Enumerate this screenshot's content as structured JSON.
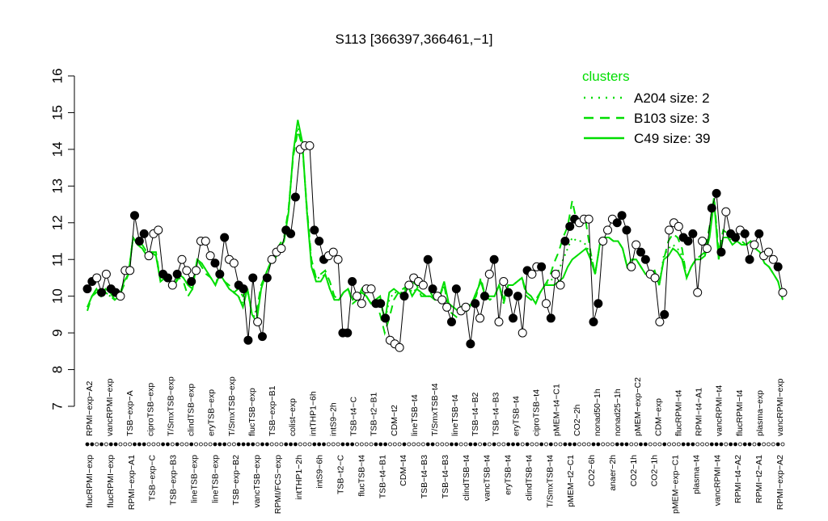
{
  "chart_data": {
    "type": "line",
    "title": "S113 [366397,366461,−1]",
    "xlabel": "",
    "ylabel": "",
    "ylim": [
      7,
      16
    ],
    "y_ticks": [
      7,
      8,
      9,
      10,
      11,
      12,
      13,
      14,
      15,
      16
    ],
    "grid": false,
    "legend": {
      "title": "clusters",
      "placement": "top-right",
      "entries": [
        {
          "label": "A204 size: 2",
          "style": "dotted"
        },
        {
          "label": "B103 size: 3",
          "style": "dashed"
        },
        {
          "label": "C49 size: 39",
          "style": "solid"
        }
      ]
    },
    "colors": {
      "cluster_lines": "#00dd00",
      "points_fill_dark": "#000000",
      "points_fill_light": "#ffffff",
      "axis": "#000000"
    },
    "top_labels": [
      "RPMI−exp−A2",
      "vancRPMI−exp",
      "TSB−exp−A",
      "ciproTSB−exp",
      "T/SmxTSB−exp",
      "clindTSB−exp",
      "eryTSB−exp",
      "T/SmxTSB−exp",
      "flucTSB−exp",
      "TSB−exp−B1",
      "colist−exp",
      "intTHP1−6h",
      "intS9−2h",
      "TSB−t4−C",
      "TSB−t2−B1",
      "CDM−t2",
      "lineTSB−t4",
      "T/SmxTSB−t4",
      "lineTSB−t4",
      "TSB−t4−B2",
      "TSB−t4−B3",
      "eryTSB−t4",
      "ciproTSB−t4",
      "pMEM−t4−C1",
      "CO2−2h",
      "nonad50−1h",
      "nonad25−1h",
      "pMEM−exp−C2",
      "CDM−exp",
      "flucRPMI−t4",
      "RPMI−t4−A1",
      "vancRPMI−t4",
      "flucRPMI−t4",
      "plasma−exp",
      "vancRPMI−exp"
    ],
    "bottom_labels": [
      "flucRPMI−exp",
      "flucRPMI−exp",
      "RPMI−exp−A1",
      "TSB−exp−C",
      "TSB−exp−B3",
      "lineTSB−exp",
      "lineTSB−exp",
      "TSB−exp−B2",
      "vancTSB−exp",
      "RPMI/FCS−exp",
      "intTHP1−2h",
      "intS9−6h",
      "TSB−t2−C",
      "flucTSB−t4",
      "TSB−t4−B1",
      "CDM−t4",
      "TSB−t4−B3",
      "TSB−t4−B3",
      "clindTSB−t4",
      "vancTSB−t4",
      "eryTSB−t4",
      "clindTSB−t4",
      "T/SmxTSB−t4",
      "pMEM−t2−C1",
      "CO2−6h",
      "anaer−2h",
      "CO2−1h",
      "CO2−1h",
      "pMEM−exp−C1",
      "plasma−t4",
      "vancRPMI−t4",
      "RPMI−t4−A2",
      "RPMI−t2−A1",
      "RPMI−exp−A2"
    ],
    "samples": [
      {
        "y": 10.2,
        "filled": true
      },
      {
        "y": 10.4,
        "filled": true
      },
      {
        "y": 10.5,
        "filled": false
      },
      {
        "y": 10.1,
        "filled": true
      },
      {
        "y": 10.6,
        "filled": false
      },
      {
        "y": 10.2,
        "filled": true
      },
      {
        "y": 10.1,
        "filled": true
      },
      {
        "y": 10.0,
        "filled": false
      },
      {
        "y": 10.7,
        "filled": false
      },
      {
        "y": 10.7,
        "filled": false
      },
      {
        "y": 12.2,
        "filled": true
      },
      {
        "y": 11.5,
        "filled": true
      },
      {
        "y": 11.7,
        "filled": true
      },
      {
        "y": 11.1,
        "filled": false
      },
      {
        "y": 11.7,
        "filled": false
      },
      {
        "y": 11.8,
        "filled": false
      },
      {
        "y": 10.6,
        "filled": true
      },
      {
        "y": 10.5,
        "filled": true
      },
      {
        "y": 10.3,
        "filled": false
      },
      {
        "y": 10.6,
        "filled": true
      },
      {
        "y": 11.0,
        "filled": false
      },
      {
        "y": 10.7,
        "filled": false
      },
      {
        "y": 10.4,
        "filled": true
      },
      {
        "y": 10.7,
        "filled": false
      },
      {
        "y": 11.5,
        "filled": false
      },
      {
        "y": 11.5,
        "filled": false
      },
      {
        "y": 11.1,
        "filled": false
      },
      {
        "y": 10.9,
        "filled": true
      },
      {
        "y": 10.6,
        "filled": true
      },
      {
        "y": 11.6,
        "filled": true
      },
      {
        "y": 11.0,
        "filled": false
      },
      {
        "y": 10.9,
        "filled": false
      },
      {
        "y": 10.3,
        "filled": true
      },
      {
        "y": 10.2,
        "filled": true
      },
      {
        "y": 8.8,
        "filled": true
      },
      {
        "y": 10.5,
        "filled": true
      },
      {
        "y": 9.3,
        "filled": false
      },
      {
        "y": 8.9,
        "filled": true
      },
      {
        "y": 10.5,
        "filled": true
      },
      {
        "y": 11.0,
        "filled": false
      },
      {
        "y": 11.2,
        "filled": false
      },
      {
        "y": 11.3,
        "filled": false
      },
      {
        "y": 11.8,
        "filled": true
      },
      {
        "y": 11.7,
        "filled": true
      },
      {
        "y": 12.7,
        "filled": true
      },
      {
        "y": 14.0,
        "filled": false
      },
      {
        "y": 14.1,
        "filled": false
      },
      {
        "y": 14.1,
        "filled": false
      },
      {
        "y": 11.8,
        "filled": true
      },
      {
        "y": 11.5,
        "filled": true
      },
      {
        "y": 11.0,
        "filled": true
      },
      {
        "y": 11.1,
        "filled": false
      },
      {
        "y": 11.2,
        "filled": false
      },
      {
        "y": 11.0,
        "filled": false
      },
      {
        "y": 9.0,
        "filled": true
      },
      {
        "y": 9.0,
        "filled": true
      },
      {
        "y": 10.4,
        "filled": true
      },
      {
        "y": 10.0,
        "filled": false
      },
      {
        "y": 9.8,
        "filled": false
      },
      {
        "y": 10.2,
        "filled": false
      },
      {
        "y": 10.2,
        "filled": false
      },
      {
        "y": 9.8,
        "filled": true
      },
      {
        "y": 9.8,
        "filled": true
      },
      {
        "y": 9.4,
        "filled": true
      },
      {
        "y": 8.8,
        "filled": false
      },
      {
        "y": 8.7,
        "filled": false
      },
      {
        "y": 8.6,
        "filled": false
      },
      {
        "y": 10.0,
        "filled": true
      },
      {
        "y": 10.3,
        "filled": false
      },
      {
        "y": 10.5,
        "filled": false
      },
      {
        "y": 10.4,
        "filled": false
      },
      {
        "y": 10.3,
        "filled": false
      },
      {
        "y": 11.0,
        "filled": true
      },
      {
        "y": 10.2,
        "filled": true
      },
      {
        "y": 10.0,
        "filled": false
      },
      {
        "y": 9.9,
        "filled": false
      },
      {
        "y": 9.7,
        "filled": false
      },
      {
        "y": 9.3,
        "filled": true
      },
      {
        "y": 10.2,
        "filled": true
      },
      {
        "y": 9.6,
        "filled": false
      },
      {
        "y": 9.7,
        "filled": false
      },
      {
        "y": 8.7,
        "filled": true
      },
      {
        "y": 9.8,
        "filled": true
      },
      {
        "y": 9.4,
        "filled": false
      },
      {
        "y": 10.0,
        "filled": true
      },
      {
        "y": 10.6,
        "filled": false
      },
      {
        "y": 11.0,
        "filled": true
      },
      {
        "y": 9.3,
        "filled": false
      },
      {
        "y": 10.4,
        "filled": false
      },
      {
        "y": 10.1,
        "filled": true
      },
      {
        "y": 9.4,
        "filled": true
      },
      {
        "y": 10.0,
        "filled": true
      },
      {
        "y": 9.0,
        "filled": false
      },
      {
        "y": 10.7,
        "filled": true
      },
      {
        "y": 10.6,
        "filled": false
      },
      {
        "y": 10.8,
        "filled": false
      },
      {
        "y": 10.8,
        "filled": true
      },
      {
        "y": 9.8,
        "filled": false
      },
      {
        "y": 9.4,
        "filled": true
      },
      {
        "y": 10.6,
        "filled": false
      },
      {
        "y": 10.3,
        "filled": false
      },
      {
        "y": 11.5,
        "filled": true
      },
      {
        "y": 11.9,
        "filled": true
      },
      {
        "y": 12.1,
        "filled": true
      },
      {
        "y": 12.0,
        "filled": false
      },
      {
        "y": 12.1,
        "filled": false
      },
      {
        "y": 12.1,
        "filled": false
      },
      {
        "y": 9.3,
        "filled": true
      },
      {
        "y": 9.8,
        "filled": true
      },
      {
        "y": 11.5,
        "filled": false
      },
      {
        "y": 11.8,
        "filled": false
      },
      {
        "y": 12.1,
        "filled": false
      },
      {
        "y": 12.0,
        "filled": true
      },
      {
        "y": 12.2,
        "filled": true
      },
      {
        "y": 11.8,
        "filled": true
      },
      {
        "y": 10.8,
        "filled": false
      },
      {
        "y": 11.4,
        "filled": false
      },
      {
        "y": 11.2,
        "filled": true
      },
      {
        "y": 11.0,
        "filled": true
      },
      {
        "y": 10.6,
        "filled": false
      },
      {
        "y": 10.5,
        "filled": false
      },
      {
        "y": 9.3,
        "filled": false
      },
      {
        "y": 9.5,
        "filled": true
      },
      {
        "y": 11.8,
        "filled": false
      },
      {
        "y": 12.0,
        "filled": false
      },
      {
        "y": 11.9,
        "filled": false
      },
      {
        "y": 11.6,
        "filled": true
      },
      {
        "y": 11.5,
        "filled": true
      },
      {
        "y": 11.7,
        "filled": true
      },
      {
        "y": 10.1,
        "filled": false
      },
      {
        "y": 11.5,
        "filled": false
      },
      {
        "y": 11.3,
        "filled": false
      },
      {
        "y": 12.4,
        "filled": true
      },
      {
        "y": 12.8,
        "filled": true
      },
      {
        "y": 11.2,
        "filled": true
      },
      {
        "y": 12.3,
        "filled": false
      },
      {
        "y": 11.7,
        "filled": true
      },
      {
        "y": 11.6,
        "filled": true
      },
      {
        "y": 11.8,
        "filled": false
      },
      {
        "y": 11.7,
        "filled": true
      },
      {
        "y": 11.0,
        "filled": true
      },
      {
        "y": 11.4,
        "filled": false
      },
      {
        "y": 11.7,
        "filled": true
      },
      {
        "y": 11.1,
        "filled": false
      },
      {
        "y": 11.2,
        "filled": false
      },
      {
        "y": 11.0,
        "filled": false
      },
      {
        "y": 10.8,
        "filled": true
      },
      {
        "y": 10.1,
        "filled": false
      }
    ],
    "series": [
      {
        "name": "C49 size: 39",
        "style": "solid",
        "values": [
          9.7,
          10.0,
          10.2,
          10.0,
          10.2,
          10.1,
          9.9,
          10.0,
          10.4,
          10.6,
          11.6,
          11.4,
          11.3,
          11.1,
          11.2,
          11.1,
          10.4,
          10.5,
          10.4,
          10.3,
          10.6,
          10.5,
          10.3,
          10.2,
          11.0,
          10.9,
          10.7,
          10.5,
          10.3,
          10.6,
          10.4,
          10.2,
          10.1,
          10.0,
          9.7,
          10.2,
          9.5,
          9.3,
          10.2,
          10.6,
          10.9,
          11.0,
          11.3,
          11.5,
          12.3,
          13.9,
          14.8,
          14.2,
          12.3,
          10.8,
          10.4,
          10.4,
          10.6,
          10.2,
          9.9,
          9.9,
          10.1,
          10.2,
          9.9,
          10.0,
          10.1,
          10.0,
          9.8,
          9.9,
          10.0,
          9.3,
          10.1,
          10.2,
          10.1,
          10.0,
          10.3,
          10.0,
          10.2,
          10.1,
          10.0,
          10.0,
          9.9,
          10.0,
          10.4,
          9.8,
          9.7,
          9.6,
          9.7,
          9.6,
          9.8,
          10.1,
          10.4,
          10.0,
          10.0,
          10.0,
          10.3,
          9.9,
          10.3,
          10.3,
          10.4,
          10.5,
          10.1,
          10.0,
          9.8,
          10.1,
          10.3,
          10.3,
          10.3,
          10.4,
          10.5,
          10.8,
          11.0,
          11.1,
          11.2,
          11.3,
          11.0,
          10.6,
          11.4,
          11.6,
          11.6,
          11.5,
          11.5,
          11.3,
          10.8,
          11.0,
          11.0,
          10.8,
          10.6,
          10.6,
          10.7,
          10.3,
          11.0,
          11.1,
          11.3,
          11.2,
          11.0,
          10.5,
          10.8,
          11.0,
          11.0,
          11.1,
          11.6,
          12.6,
          11.0,
          11.6,
          11.6,
          11.4,
          11.5,
          11.4,
          11.4,
          11.5,
          11.3,
          11.2,
          10.9,
          10.8,
          10.6,
          10.4,
          9.9
        ]
      },
      {
        "name": "B103 size: 3",
        "style": "dashed",
        "values": [
          9.6,
          10.0,
          10.1,
          10.0,
          10.1,
          10.0,
          9.9,
          10.0,
          10.3,
          10.6,
          11.6,
          11.4,
          11.4,
          11.2,
          11.2,
          11.2,
          10.4,
          10.5,
          10.4,
          10.3,
          10.5,
          10.4,
          10.0,
          10.2,
          11.0,
          10.8,
          10.6,
          10.5,
          10.3,
          10.7,
          10.4,
          10.3,
          10.1,
          10.2,
          10.0,
          10.2,
          9.5,
          9.6,
          10.3,
          10.6,
          10.9,
          11.0,
          11.4,
          11.6,
          12.4,
          13.8,
          14.5,
          14.1,
          12.4,
          11.0,
          10.5,
          10.6,
          10.7,
          10.4,
          10.0,
          9.9,
          10.1,
          10.2,
          9.8,
          9.9,
          10.2,
          10.0,
          9.8,
          9.9,
          9.5,
          9.0,
          9.4,
          9.9,
          10.1,
          10.2,
          10.3,
          10.4,
          10.3,
          10.0,
          10.0,
          10.1,
          9.9,
          10.0,
          10.3,
          9.6,
          9.5,
          9.4,
          9.8,
          9.7,
          9.8,
          10.0,
          10.5,
          10.0,
          9.9,
          10.0,
          10.3,
          9.8,
          10.3,
          10.3,
          10.4,
          10.5,
          10.0,
          9.9,
          9.9,
          10.1,
          10.3,
          10.5,
          10.9,
          11.2,
          11.6,
          11.9,
          12.6,
          12.0,
          12.1,
          12.0,
          11.2,
          10.6,
          11.4,
          11.6,
          11.6,
          11.5,
          11.5,
          11.3,
          10.8,
          11.0,
          11.0,
          10.8,
          10.6,
          10.6,
          10.7,
          10.3,
          11.0,
          11.5,
          11.7,
          11.6,
          11.3,
          10.5,
          10.8,
          11.0,
          11.1,
          11.2,
          11.9,
          12.7,
          11.2,
          11.8,
          11.7,
          11.6,
          11.6,
          11.5,
          11.4,
          11.5,
          11.3,
          11.2,
          10.9,
          10.8,
          10.6,
          10.4,
          9.9
        ]
      },
      {
        "name": "A204 size: 2",
        "style": "dotted",
        "values": [
          9.7,
          10.0,
          10.2,
          10.0,
          10.1,
          10.0,
          9.9,
          10.0,
          10.4,
          10.6,
          11.6,
          11.4,
          11.3,
          11.1,
          11.2,
          11.1,
          10.4,
          10.5,
          10.4,
          10.3,
          10.6,
          10.5,
          10.3,
          10.2,
          11.0,
          10.9,
          10.7,
          10.5,
          10.3,
          10.6,
          10.4,
          10.2,
          10.1,
          10.0,
          9.8,
          10.2,
          9.5,
          9.4,
          10.2,
          10.6,
          10.9,
          11.0,
          11.3,
          11.5,
          12.3,
          13.9,
          14.6,
          14.2,
          12.3,
          10.9,
          10.5,
          10.5,
          10.6,
          10.2,
          9.9,
          9.9,
          10.1,
          10.2,
          9.9,
          10.0,
          10.1,
          10.0,
          9.8,
          9.9,
          9.9,
          9.3,
          9.9,
          10.1,
          10.1,
          10.1,
          10.3,
          10.1,
          10.2,
          10.1,
          10.0,
          10.0,
          9.9,
          10.0,
          10.3,
          9.8,
          9.7,
          9.6,
          9.7,
          9.6,
          9.8,
          10.1,
          10.4,
          10.0,
          10.0,
          10.0,
          10.3,
          9.9,
          10.3,
          10.3,
          10.4,
          10.5,
          10.1,
          10.0,
          9.8,
          10.1,
          10.3,
          10.4,
          10.5,
          10.7,
          11.0,
          11.3,
          11.6,
          11.5,
          11.5,
          11.4,
          11.1,
          10.6,
          11.4,
          11.6,
          11.6,
          11.5,
          11.5,
          11.3,
          10.8,
          11.0,
          11.0,
          10.8,
          10.6,
          10.6,
          10.7,
          10.3,
          11.1,
          11.3,
          11.4,
          11.3,
          11.1,
          10.5,
          10.8,
          11.0,
          11.0,
          11.2,
          11.7,
          12.6,
          11.1,
          11.6,
          11.6,
          11.5,
          11.5,
          11.4,
          11.4,
          11.5,
          11.3,
          11.2,
          10.9,
          10.8,
          10.6,
          10.4,
          9.9
        ]
      }
    ]
  }
}
